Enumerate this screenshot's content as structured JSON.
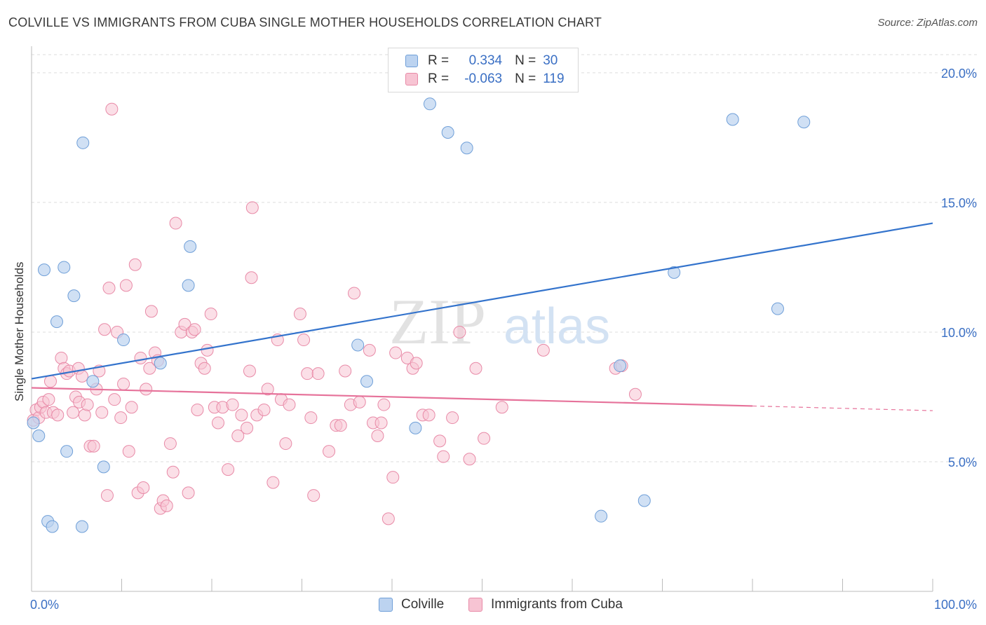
{
  "header": {
    "title": "COLVILLE VS IMMIGRANTS FROM CUBA SINGLE MOTHER HOUSEHOLDS CORRELATION CHART",
    "source": "Source: ZipAtlas.com"
  },
  "watermark": {
    "part1": "ZIP",
    "part2": "atlas"
  },
  "legend_top": {
    "rows": [
      {
        "r_label": "R =",
        "r_value": "0.334",
        "n_label": "N =",
        "n_value": "30"
      },
      {
        "r_label": "R =",
        "r_value": "-0.063",
        "n_label": "N =",
        "n_value": "119"
      }
    ]
  },
  "colors": {
    "colville_fill": "#bcd3f0",
    "colville_stroke": "#6f9fd8",
    "colville_line": "#3373cc",
    "cuba_fill": "#f7c4d3",
    "cuba_stroke": "#e88aa7",
    "cuba_line": "#e6729a",
    "axis_text": "#3a6fc4",
    "grid": "#dddddd"
  },
  "chart_data": {
    "type": "scatter",
    "title": "COLVILLE VS IMMIGRANTS FROM CUBA SINGLE MOTHER HOUSEHOLDS CORRELATION CHART",
    "xlabel": "",
    "ylabel": "Single Mother Households",
    "xlim": [
      0,
      100
    ],
    "ylim": [
      0,
      20.7
    ],
    "x_tick_labels": [
      "0.0%",
      "100.0%"
    ],
    "y_ticks": [
      5,
      10,
      15,
      20
    ],
    "y_tick_labels": [
      "5.0%",
      "10.0%",
      "15.0%",
      "20.0%"
    ],
    "grid": true,
    "legend_placement": "bottom",
    "series": [
      {
        "name": "Colville",
        "r": 0.334,
        "n": 30,
        "trend": {
          "x": [
            0,
            100
          ],
          "y": [
            8.2,
            14.2
          ]
        },
        "points": [
          [
            0.2,
            6.5
          ],
          [
            0.8,
            6.0
          ],
          [
            1.4,
            12.4
          ],
          [
            1.8,
            2.7
          ],
          [
            2.3,
            2.5
          ],
          [
            2.8,
            10.4
          ],
          [
            3.6,
            12.5
          ],
          [
            3.9,
            5.4
          ],
          [
            4.7,
            11.4
          ],
          [
            5.6,
            2.5
          ],
          [
            5.7,
            17.3
          ],
          [
            6.8,
            8.1
          ],
          [
            8.0,
            4.8
          ],
          [
            10.2,
            9.7
          ],
          [
            14.3,
            8.8
          ],
          [
            17.4,
            11.8
          ],
          [
            17.6,
            13.3
          ],
          [
            36.2,
            9.5
          ],
          [
            37.2,
            8.1
          ],
          [
            42.6,
            6.3
          ],
          [
            44.2,
            18.8
          ],
          [
            46.2,
            17.7
          ],
          [
            48.3,
            17.1
          ],
          [
            63.2,
            2.9
          ],
          [
            65.3,
            8.7
          ],
          [
            68.0,
            3.5
          ],
          [
            71.3,
            12.3
          ],
          [
            77.8,
            18.2
          ],
          [
            82.8,
            10.9
          ],
          [
            85.7,
            18.1
          ]
        ]
      },
      {
        "name": "Immigrants from Cuba",
        "r": -0.063,
        "n": 119,
        "trend": {
          "x": [
            0,
            80
          ],
          "y": [
            7.85,
            7.15
          ]
        },
        "trend_dashed": {
          "x": [
            80,
            100
          ],
          "y": [
            7.15,
            6.97
          ]
        },
        "points": [
          [
            0.2,
            6.6
          ],
          [
            0.5,
            7.0
          ],
          [
            0.8,
            6.7
          ],
          [
            1.0,
            7.1
          ],
          [
            1.3,
            7.3
          ],
          [
            1.6,
            6.9
          ],
          [
            1.9,
            7.4
          ],
          [
            2.1,
            8.1
          ],
          [
            2.4,
            6.9
          ],
          [
            2.9,
            6.8
          ],
          [
            3.3,
            9.0
          ],
          [
            3.6,
            8.6
          ],
          [
            3.9,
            8.4
          ],
          [
            4.2,
            8.5
          ],
          [
            4.6,
            6.9
          ],
          [
            4.9,
            7.5
          ],
          [
            5.2,
            8.6
          ],
          [
            5.3,
            7.3
          ],
          [
            5.6,
            8.3
          ],
          [
            5.9,
            6.8
          ],
          [
            6.2,
            7.2
          ],
          [
            6.5,
            5.6
          ],
          [
            6.9,
            5.6
          ],
          [
            7.2,
            7.8
          ],
          [
            7.5,
            8.5
          ],
          [
            7.8,
            6.9
          ],
          [
            8.1,
            10.1
          ],
          [
            8.4,
            3.7
          ],
          [
            8.6,
            11.7
          ],
          [
            8.9,
            18.6
          ],
          [
            9.2,
            7.4
          ],
          [
            9.5,
            10.0
          ],
          [
            9.9,
            6.7
          ],
          [
            10.2,
            8.0
          ],
          [
            10.5,
            11.8
          ],
          [
            10.8,
            5.4
          ],
          [
            11.1,
            7.1
          ],
          [
            11.5,
            12.6
          ],
          [
            11.8,
            3.8
          ],
          [
            12.1,
            9.0
          ],
          [
            12.4,
            4.0
          ],
          [
            12.7,
            7.8
          ],
          [
            13.1,
            8.6
          ],
          [
            13.3,
            10.8
          ],
          [
            13.7,
            9.2
          ],
          [
            14.0,
            8.9
          ],
          [
            14.3,
            3.2
          ],
          [
            14.6,
            3.5
          ],
          [
            15.0,
            3.3
          ],
          [
            15.4,
            5.7
          ],
          [
            15.7,
            4.6
          ],
          [
            16.0,
            14.2
          ],
          [
            16.6,
            10.0
          ],
          [
            17.0,
            10.3
          ],
          [
            17.4,
            3.8
          ],
          [
            17.8,
            10.0
          ],
          [
            18.1,
            10.1
          ],
          [
            18.4,
            7.0
          ],
          [
            18.8,
            8.8
          ],
          [
            19.2,
            8.6
          ],
          [
            19.5,
            9.3
          ],
          [
            19.9,
            10.7
          ],
          [
            20.3,
            7.1
          ],
          [
            20.7,
            6.5
          ],
          [
            21.2,
            7.1
          ],
          [
            21.8,
            4.7
          ],
          [
            22.3,
            7.2
          ],
          [
            22.9,
            6.0
          ],
          [
            23.3,
            6.8
          ],
          [
            23.9,
            6.3
          ],
          [
            24.2,
            8.5
          ],
          [
            24.4,
            12.1
          ],
          [
            24.5,
            14.8
          ],
          [
            25.0,
            6.8
          ],
          [
            25.8,
            7.0
          ],
          [
            26.2,
            7.8
          ],
          [
            26.8,
            4.2
          ],
          [
            27.3,
            9.7
          ],
          [
            27.7,
            7.4
          ],
          [
            28.2,
            5.7
          ],
          [
            28.6,
            7.2
          ],
          [
            29.8,
            10.7
          ],
          [
            30.2,
            9.7
          ],
          [
            30.6,
            8.4
          ],
          [
            31.0,
            6.7
          ],
          [
            31.3,
            3.7
          ],
          [
            31.8,
            8.4
          ],
          [
            33.0,
            5.4
          ],
          [
            33.8,
            6.4
          ],
          [
            34.3,
            6.4
          ],
          [
            34.8,
            8.5
          ],
          [
            35.4,
            7.2
          ],
          [
            35.8,
            11.5
          ],
          [
            36.4,
            7.3
          ],
          [
            37.5,
            9.3
          ],
          [
            37.9,
            6.5
          ],
          [
            38.4,
            6.0
          ],
          [
            38.8,
            6.5
          ],
          [
            39.1,
            7.2
          ],
          [
            39.6,
            2.8
          ],
          [
            40.1,
            4.4
          ],
          [
            40.4,
            9.2
          ],
          [
            41.7,
            9.0
          ],
          [
            42.3,
            8.6
          ],
          [
            42.7,
            8.8
          ],
          [
            43.4,
            6.8
          ],
          [
            44.1,
            6.8
          ],
          [
            45.3,
            5.8
          ],
          [
            45.7,
            5.2
          ],
          [
            46.7,
            6.7
          ],
          [
            47.5,
            10.0
          ],
          [
            48.6,
            5.1
          ],
          [
            49.3,
            8.6
          ],
          [
            50.2,
            5.9
          ],
          [
            52.2,
            7.1
          ],
          [
            56.8,
            9.3
          ],
          [
            64.8,
            8.6
          ],
          [
            65.5,
            8.7
          ],
          [
            67.0,
            7.6
          ]
        ]
      }
    ]
  },
  "legend_bottom": {
    "items": [
      {
        "label": "Colville"
      },
      {
        "label": "Immigrants from Cuba"
      }
    ]
  }
}
